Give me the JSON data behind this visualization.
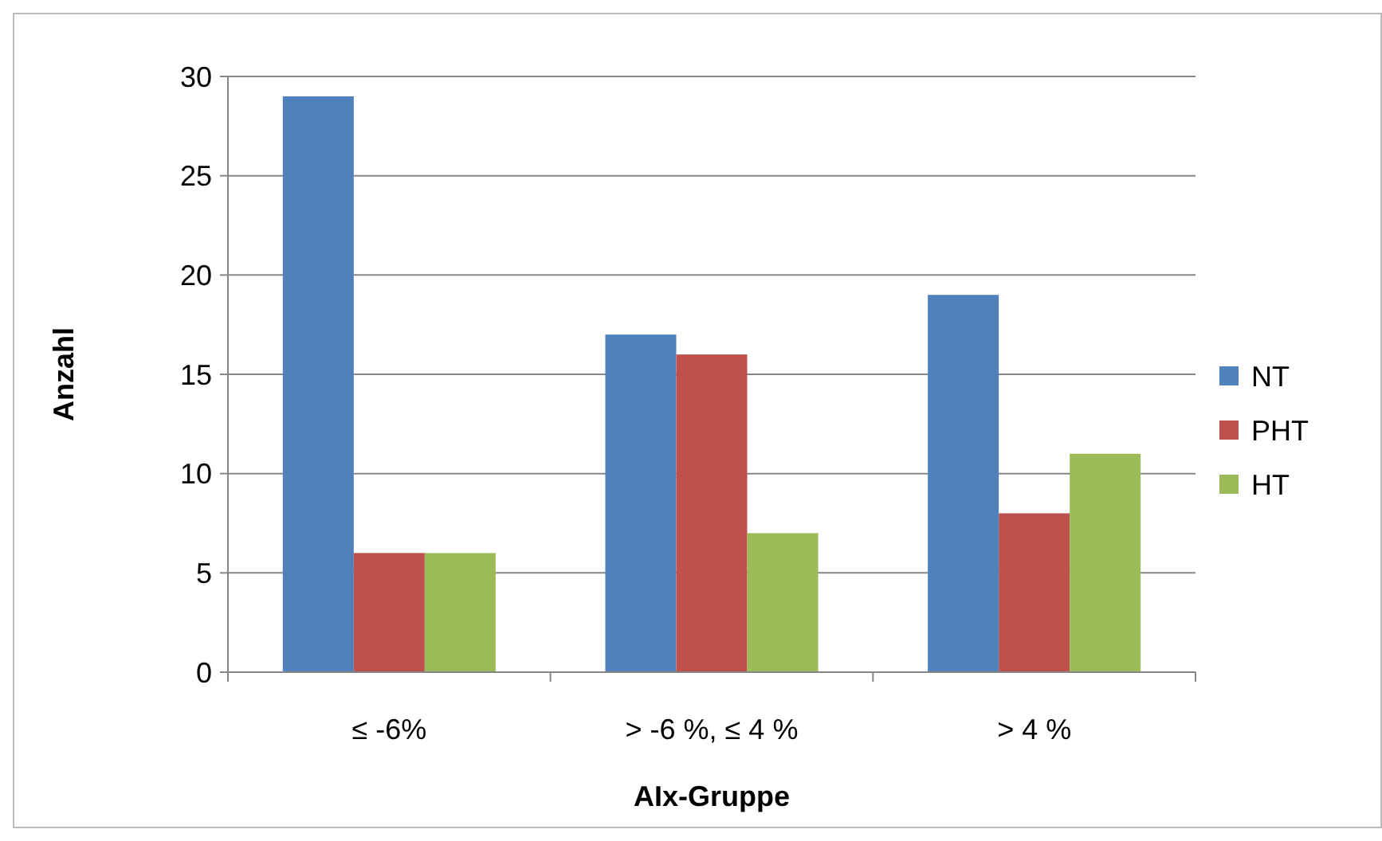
{
  "chart_data": {
    "type": "bar",
    "xlabel": "AIx-Gruppe",
    "ylabel": "Anzahl",
    "categories": [
      "≤ -6%",
      "> -6 %, ≤ 4 %",
      "> 4 %"
    ],
    "series": [
      {
        "name": "NT",
        "color": "#4f81bd",
        "values": [
          29,
          17,
          19
        ]
      },
      {
        "name": "PHT",
        "color": "#c0504d",
        "values": [
          6,
          16,
          8
        ]
      },
      {
        "name": "HT",
        "color": "#9bbb59",
        "values": [
          6,
          7,
          11
        ]
      }
    ],
    "ylim": [
      0,
      30
    ],
    "yticks": [
      0,
      5,
      10,
      15,
      20,
      25,
      30
    ],
    "grid": "y",
    "legend": "right"
  }
}
